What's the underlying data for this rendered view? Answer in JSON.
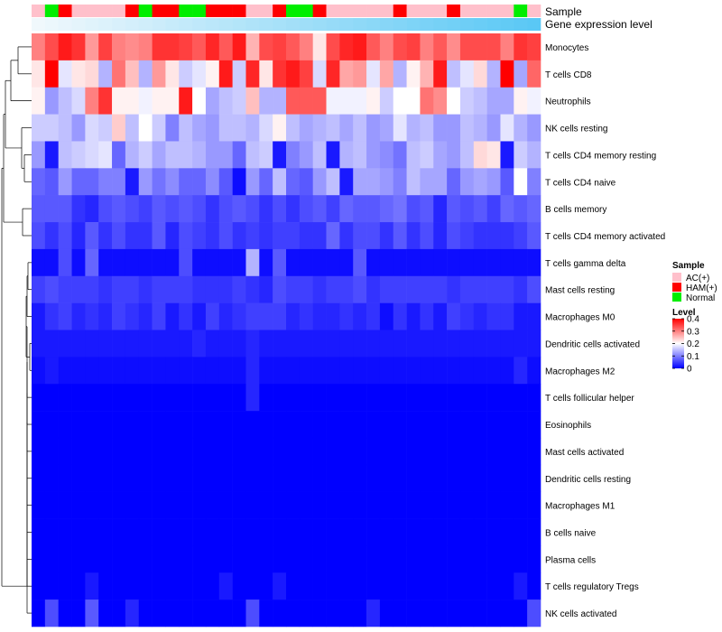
{
  "chart_data": {
    "type": "heatmap",
    "title": "",
    "annotation_labels": [
      "Sample",
      "Gene expression level"
    ],
    "legend_sample": {
      "title": "Sample",
      "items": [
        {
          "label": "AC(+)",
          "color": "#ffc0cb"
        },
        {
          "label": "HAM(+)",
          "color": "#ff0000"
        },
        {
          "label": "Normal",
          "color": "#00ee00"
        }
      ]
    },
    "legend_level": {
      "title": "Level",
      "ticks": [
        "0.4",
        "0.3",
        "0.2",
        "0.1",
        "0"
      ],
      "tick_values": [
        0.4,
        0.3,
        0.2,
        0.1,
        0
      ],
      "range": [
        0,
        0.4
      ]
    },
    "colors": {
      "low": "#0000ff",
      "mid": "#ffffff",
      "high": "#ff0000",
      "mid_value": 0.2
    },
    "sample_groups": [
      "AC(+)",
      "Normal",
      "HAM(+)",
      "AC(+)",
      "AC(+)",
      "AC(+)",
      "AC(+)",
      "HAM(+)",
      "Normal",
      "HAM(+)",
      "HAM(+)",
      "Normal",
      "Normal",
      "HAM(+)",
      "HAM(+)",
      "HAM(+)",
      "AC(+)",
      "AC(+)",
      "HAM(+)",
      "Normal",
      "Normal",
      "HAM(+)",
      "AC(+)",
      "AC(+)",
      "AC(+)",
      "AC(+)",
      "AC(+)",
      "HAM(+)",
      "AC(+)",
      "AC(+)",
      "AC(+)",
      "HAM(+)",
      "AC(+)",
      "AC(+)",
      "AC(+)",
      "AC(+)",
      "Normal",
      "AC(+)"
    ],
    "expression_gradient": [
      "#f0f8fc",
      "#5ac8f5"
    ],
    "rows": [
      {
        "name": "Monocytes",
        "values": [
          0.3,
          0.34,
          0.38,
          0.36,
          0.28,
          0.35,
          0.3,
          0.29,
          0.3,
          0.36,
          0.36,
          0.35,
          0.33,
          0.37,
          0.33,
          0.38,
          0.26,
          0.34,
          0.35,
          0.33,
          0.3,
          0.22,
          0.34,
          0.37,
          0.38,
          0.33,
          0.3,
          0.34,
          0.35,
          0.3,
          0.33,
          0.29,
          0.34,
          0.34,
          0.34,
          0.3,
          0.36,
          0.35
        ]
      },
      {
        "name": "T cells CD8",
        "values": [
          0.22,
          0.4,
          0.18,
          0.22,
          0.23,
          0.14,
          0.31,
          0.25,
          0.14,
          0.28,
          0.22,
          0.16,
          0.18,
          0.21,
          0.38,
          0.16,
          0.37,
          0.22,
          0.36,
          0.38,
          0.35,
          0.17,
          0.37,
          0.27,
          0.28,
          0.18,
          0.27,
          0.14,
          0.21,
          0.26,
          0.38,
          0.15,
          0.18,
          0.23,
          0.14,
          0.4,
          0.13,
          0.32
        ]
      },
      {
        "name": "Neutrophils",
        "values": [
          0.21,
          0.12,
          0.15,
          0.17,
          0.3,
          0.36,
          0.21,
          0.21,
          0.19,
          0.21,
          0.21,
          0.38,
          0.2,
          0.13,
          0.15,
          0.16,
          0.25,
          0.14,
          0.14,
          0.33,
          0.33,
          0.33,
          0.19,
          0.19,
          0.19,
          0.21,
          0.16,
          0.2,
          0.2,
          0.31,
          0.29,
          0.2,
          0.16,
          0.15,
          0.13,
          0.13,
          0.21,
          0.19
        ]
      },
      {
        "name": "NK cells resting",
        "values": [
          0.16,
          0.16,
          0.15,
          0.12,
          0.17,
          0.16,
          0.24,
          0.15,
          0.2,
          0.16,
          0.1,
          0.15,
          0.13,
          0.12,
          0.15,
          0.15,
          0.14,
          0.17,
          0.21,
          0.15,
          0.13,
          0.14,
          0.15,
          0.13,
          0.15,
          0.12,
          0.13,
          0.18,
          0.14,
          0.15,
          0.12,
          0.12,
          0.15,
          0.14,
          0.12,
          0.18,
          0.14,
          0.12
        ]
      },
      {
        "name": "T cells CD4 memory resting",
        "values": [
          0.12,
          0.02,
          0.15,
          0.16,
          0.17,
          0.18,
          0.08,
          0.14,
          0.16,
          0.13,
          0.15,
          0.15,
          0.14,
          0.12,
          0.12,
          0.08,
          0.15,
          0.16,
          0.02,
          0.1,
          0.12,
          0.15,
          0.02,
          0.14,
          0.15,
          0.12,
          0.11,
          0.09,
          0.15,
          0.16,
          0.13,
          0.12,
          0.15,
          0.23,
          0.22,
          0.02,
          0.16,
          0.14
        ]
      },
      {
        "name": "T cells CD4 naive",
        "values": [
          0.08,
          0.07,
          0.12,
          0.08,
          0.08,
          0.1,
          0.1,
          0.02,
          0.12,
          0.09,
          0.11,
          0.08,
          0.08,
          0.11,
          0.07,
          0.01,
          0.12,
          0.08,
          0.15,
          0.08,
          0.07,
          0.12,
          0.15,
          0.02,
          0.13,
          0.13,
          0.12,
          0.1,
          0.15,
          0.13,
          0.13,
          0.08,
          0.12,
          0.13,
          0.12,
          0.07,
          0.2,
          0.1
        ]
      },
      {
        "name": "B cells memory",
        "values": [
          0.07,
          0.07,
          0.07,
          0.04,
          0.03,
          0.06,
          0.07,
          0.06,
          0.05,
          0.07,
          0.06,
          0.07,
          0.06,
          0.04,
          0.06,
          0.07,
          0.06,
          0.04,
          0.06,
          0.04,
          0.06,
          0.07,
          0.05,
          0.08,
          0.07,
          0.07,
          0.08,
          0.09,
          0.06,
          0.07,
          0.03,
          0.07,
          0.06,
          0.07,
          0.05,
          0.08,
          0.07,
          0.08
        ]
      },
      {
        "name": "T cells CD4 memory activated",
        "values": [
          0.06,
          0.04,
          0.06,
          0.03,
          0.07,
          0.04,
          0.06,
          0.04,
          0.04,
          0.07,
          0.03,
          0.06,
          0.05,
          0.04,
          0.06,
          0.04,
          0.05,
          0.04,
          0.05,
          0.05,
          0.04,
          0.04,
          0.08,
          0.04,
          0.06,
          0.06,
          0.04,
          0.07,
          0.04,
          0.06,
          0.03,
          0.06,
          0.05,
          0.04,
          0.04,
          0.04,
          0.05,
          0.07
        ]
      },
      {
        "name": "T cells gamma delta",
        "values": [
          0.01,
          0.01,
          0.06,
          0.01,
          0.08,
          0.01,
          0.01,
          0.01,
          0.01,
          0.01,
          0.01,
          0.06,
          0.01,
          0.01,
          0.01,
          0.01,
          0.14,
          0.01,
          0.07,
          0.01,
          0.01,
          0.01,
          0.01,
          0.01,
          0.07,
          0.01,
          0.01,
          0.01,
          0.01,
          0.01,
          0.01,
          0.01,
          0.01,
          0.01,
          0.01,
          0.01,
          0.01,
          0.01
        ]
      },
      {
        "name": "Mast cells resting",
        "values": [
          0.05,
          0.06,
          0.05,
          0.05,
          0.05,
          0.04,
          0.05,
          0.05,
          0.04,
          0.05,
          0.05,
          0.05,
          0.04,
          0.04,
          0.04,
          0.05,
          0.04,
          0.03,
          0.06,
          0.05,
          0.05,
          0.04,
          0.05,
          0.05,
          0.06,
          0.04,
          0.05,
          0.05,
          0.05,
          0.05,
          0.05,
          0.04,
          0.05,
          0.05,
          0.05,
          0.05,
          0.04,
          0.06
        ]
      },
      {
        "name": "Macrophages M0",
        "values": [
          0.02,
          0.04,
          0.05,
          0.03,
          0.04,
          0.03,
          0.05,
          0.04,
          0.03,
          0.05,
          0.02,
          0.04,
          0.02,
          0.05,
          0.03,
          0.04,
          0.05,
          0.05,
          0.05,
          0.03,
          0.04,
          0.03,
          0.03,
          0.04,
          0.03,
          0.04,
          0.01,
          0.04,
          0.02,
          0.04,
          0.02,
          0.05,
          0.04,
          0.03,
          0.04,
          0.04,
          0.02,
          0.02
        ]
      },
      {
        "name": "Dendritic cells activated",
        "values": [
          0.02,
          0.02,
          0.02,
          0.02,
          0.02,
          0.02,
          0.02,
          0.02,
          0.02,
          0.02,
          0.02,
          0.02,
          0.03,
          0.02,
          0.02,
          0.02,
          0.03,
          0.02,
          0.02,
          0.02,
          0.02,
          0.02,
          0.02,
          0.02,
          0.02,
          0.02,
          0.02,
          0.02,
          0.02,
          0.02,
          0.02,
          0.02,
          0.02,
          0.02,
          0.02,
          0.02,
          0.02,
          0.02
        ]
      },
      {
        "name": "Macrophages M2",
        "values": [
          0.01,
          0.02,
          0.01,
          0.01,
          0.01,
          0.01,
          0.01,
          0.01,
          0.01,
          0.01,
          0.01,
          0.01,
          0.01,
          0.01,
          0.01,
          0.01,
          0.03,
          0.01,
          0.01,
          0.01,
          0.01,
          0.01,
          0.01,
          0.01,
          0.01,
          0.01,
          0.01,
          0.01,
          0.01,
          0.01,
          0.01,
          0.01,
          0.01,
          0.01,
          0.01,
          0.01,
          0.03,
          0.01
        ]
      },
      {
        "name": "T cells follicular helper",
        "values": [
          0.0,
          0.0,
          0.0,
          0.0,
          0.0,
          0.0,
          0.0,
          0.0,
          0.0,
          0.0,
          0.0,
          0.0,
          0.0,
          0.0,
          0.0,
          0.0,
          0.03,
          0.0,
          0.0,
          0.0,
          0.0,
          0.0,
          0.0,
          0.0,
          0.0,
          0.0,
          0.0,
          0.0,
          0.0,
          0.0,
          0.0,
          0.0,
          0.0,
          0.0,
          0.0,
          0.0,
          0.0,
          0.0
        ]
      },
      {
        "name": "Eosinophils",
        "values": [
          0.0,
          0.0,
          0.0,
          0.0,
          0.0,
          0.0,
          0.0,
          0.0,
          0.0,
          0.0,
          0.0,
          0.0,
          0.0,
          0.0,
          0.0,
          0.0,
          0.0,
          0.0,
          0.0,
          0.0,
          0.0,
          0.0,
          0.0,
          0.0,
          0.0,
          0.0,
          0.0,
          0.0,
          0.0,
          0.0,
          0.0,
          0.0,
          0.0,
          0.0,
          0.0,
          0.0,
          0.0,
          0.0
        ]
      },
      {
        "name": "Mast cells activated",
        "values": [
          0.0,
          0.0,
          0.0,
          0.0,
          0.0,
          0.0,
          0.0,
          0.0,
          0.0,
          0.0,
          0.0,
          0.0,
          0.0,
          0.0,
          0.0,
          0.0,
          0.0,
          0.0,
          0.0,
          0.0,
          0.0,
          0.0,
          0.0,
          0.0,
          0.0,
          0.0,
          0.0,
          0.0,
          0.0,
          0.0,
          0.0,
          0.0,
          0.0,
          0.0,
          0.0,
          0.0,
          0.0,
          0.0
        ]
      },
      {
        "name": "Dendritic cells resting",
        "values": [
          0.0,
          0.0,
          0.0,
          0.0,
          0.0,
          0.0,
          0.0,
          0.0,
          0.0,
          0.0,
          0.0,
          0.0,
          0.0,
          0.0,
          0.0,
          0.0,
          0.0,
          0.0,
          0.0,
          0.0,
          0.0,
          0.0,
          0.0,
          0.0,
          0.0,
          0.0,
          0.0,
          0.0,
          0.0,
          0.0,
          0.0,
          0.0,
          0.0,
          0.0,
          0.0,
          0.0,
          0.0,
          0.0
        ]
      },
      {
        "name": "Macrophages M1",
        "values": [
          0.0,
          0.0,
          0.0,
          0.0,
          0.0,
          0.0,
          0.0,
          0.0,
          0.0,
          0.0,
          0.0,
          0.0,
          0.0,
          0.0,
          0.0,
          0.0,
          0.0,
          0.0,
          0.0,
          0.0,
          0.0,
          0.0,
          0.0,
          0.0,
          0.0,
          0.0,
          0.0,
          0.0,
          0.0,
          0.0,
          0.0,
          0.0,
          0.0,
          0.0,
          0.0,
          0.0,
          0.0,
          0.0
        ]
      },
      {
        "name": "B cells naive",
        "values": [
          0.0,
          0.0,
          0.0,
          0.0,
          0.0,
          0.0,
          0.0,
          0.0,
          0.0,
          0.0,
          0.0,
          0.0,
          0.0,
          0.0,
          0.0,
          0.0,
          0.0,
          0.0,
          0.0,
          0.0,
          0.0,
          0.0,
          0.0,
          0.0,
          0.0,
          0.0,
          0.0,
          0.0,
          0.0,
          0.0,
          0.0,
          0.0,
          0.0,
          0.0,
          0.0,
          0.0,
          0.0,
          0.0
        ]
      },
      {
        "name": "Plasma cells",
        "values": [
          0.0,
          0.0,
          0.0,
          0.0,
          0.0,
          0.0,
          0.0,
          0.0,
          0.0,
          0.0,
          0.0,
          0.0,
          0.0,
          0.0,
          0.0,
          0.0,
          0.0,
          0.0,
          0.0,
          0.0,
          0.0,
          0.0,
          0.0,
          0.0,
          0.0,
          0.0,
          0.0,
          0.0,
          0.0,
          0.0,
          0.0,
          0.0,
          0.0,
          0.0,
          0.0,
          0.0,
          0.0,
          0.0
        ]
      },
      {
        "name": "T cells regulatory  Tregs",
        "values": [
          0.0,
          0.0,
          0.0,
          0.0,
          0.02,
          0.0,
          0.0,
          0.0,
          0.0,
          0.0,
          0.0,
          0.0,
          0.0,
          0.0,
          0.02,
          0.0,
          0.0,
          0.0,
          0.02,
          0.0,
          0.0,
          0.0,
          0.0,
          0.0,
          0.0,
          0.0,
          0.0,
          0.0,
          0.0,
          0.0,
          0.0,
          0.0,
          0.0,
          0.0,
          0.0,
          0.0,
          0.02,
          0.0
        ]
      },
      {
        "name": "NK cells activated",
        "values": [
          0.0,
          0.06,
          0.0,
          0.0,
          0.07,
          0.0,
          0.0,
          0.03,
          0.0,
          0.0,
          0.0,
          0.0,
          0.0,
          0.0,
          0.0,
          0.0,
          0.06,
          0.0,
          0.0,
          0.0,
          0.0,
          0.0,
          0.0,
          0.0,
          0.0,
          0.03,
          0.0,
          0.0,
          0.0,
          0.0,
          0.0,
          0.0,
          0.0,
          0.0,
          0.0,
          0.0,
          0.0,
          0.06
        ]
      }
    ]
  }
}
